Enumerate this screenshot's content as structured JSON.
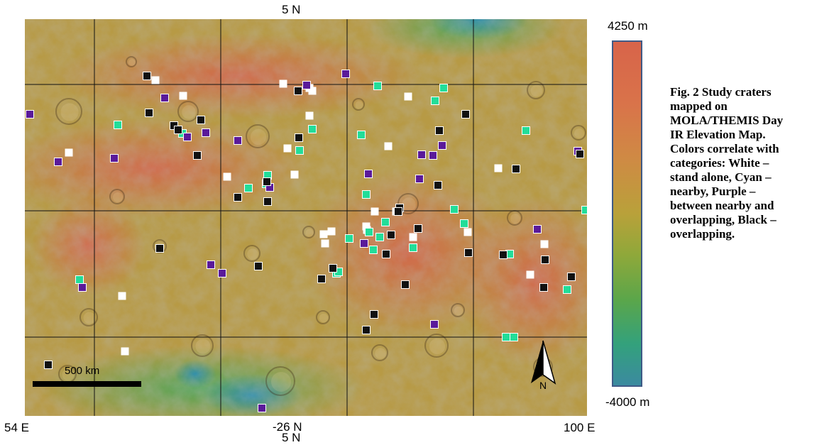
{
  "labels": {
    "top_lat": "5 N",
    "bottom_lon_left": "54 E",
    "bottom_lon_center": "-26 N",
    "bottom_lat_center": "5 N",
    "bottom_lon_right": "100 E"
  },
  "colorbar": {
    "max_label": "4250 m",
    "min_label": "-4000 m",
    "top_color": "#d8644a",
    "bottom_color": "#3b8aa0"
  },
  "caption": "Fig. 2 Study craters\nmapped on\nMOLA/THEMIS Day\nIR Elevation Map.\nColors correlate with\ncategories: White –\nstand alone, Cyan –\nnearby, Purple –\nbetween nearby and\noverlapping, Black –\noverlapping.",
  "scale_bar": {
    "label": "500 km"
  },
  "north_arrow": {
    "label": "N"
  },
  "category_colors": {
    "white": "#ffffff",
    "cyan": "#22dd99",
    "purple": "#5a1a9a",
    "black": "#111111"
  },
  "markers": {
    "white": [
      [
        219,
        113
      ],
      [
        258,
        135
      ],
      [
        399,
        118
      ],
      [
        436,
        124
      ],
      [
        440,
        128
      ],
      [
        575,
        136
      ],
      [
        436,
        163
      ],
      [
        405,
        209
      ],
      [
        97,
        215
      ],
      [
        547,
        206
      ],
      [
        320,
        249
      ],
      [
        415,
        246
      ],
      [
        702,
        237
      ],
      [
        528,
        298
      ],
      [
        558,
        298
      ],
      [
        516,
        319
      ],
      [
        467,
        326
      ],
      [
        456,
        330
      ],
      [
        458,
        343
      ],
      [
        517,
        324
      ],
      [
        582,
        334
      ],
      [
        659,
        327
      ],
      [
        767,
        344
      ],
      [
        747,
        387
      ],
      [
        172,
        417
      ],
      [
        176,
        495
      ]
    ],
    "cyan": [
      [
        532,
        121
      ],
      [
        625,
        124
      ],
      [
        613,
        142
      ],
      [
        440,
        182
      ],
      [
        166,
        176
      ],
      [
        257,
        188
      ],
      [
        509,
        190
      ],
      [
        741,
        184
      ],
      [
        422,
        212
      ],
      [
        377,
        247
      ],
      [
        375,
        259
      ],
      [
        350,
        265
      ],
      [
        516,
        274
      ],
      [
        640,
        295
      ],
      [
        543,
        313
      ],
      [
        654,
        315
      ],
      [
        520,
        327
      ],
      [
        535,
        334
      ],
      [
        492,
        336
      ],
      [
        526,
        352
      ],
      [
        582,
        349
      ],
      [
        718,
        358
      ],
      [
        112,
        394
      ],
      [
        474,
        385
      ],
      [
        477,
        383
      ],
      [
        799,
        408
      ],
      [
        713,
        475
      ],
      [
        724,
        475
      ],
      [
        825,
        296
      ]
    ],
    "purple": [
      [
        487,
        104
      ],
      [
        432,
        120
      ],
      [
        232,
        138
      ],
      [
        42,
        161
      ],
      [
        290,
        187
      ],
      [
        264,
        193
      ],
      [
        335,
        198
      ],
      [
        161,
        223
      ],
      [
        82,
        228
      ],
      [
        594,
        218
      ],
      [
        623,
        205
      ],
      [
        610,
        219
      ],
      [
        814,
        213
      ],
      [
        519,
        245
      ],
      [
        591,
        252
      ],
      [
        380,
        264
      ],
      [
        513,
        343
      ],
      [
        297,
        373
      ],
      [
        313,
        385
      ],
      [
        116,
        405
      ],
      [
        757,
        323
      ],
      [
        612,
        457
      ],
      [
        369,
        575
      ]
    ],
    "black": [
      [
        207,
        107
      ],
      [
        420,
        128
      ],
      [
        210,
        159
      ],
      [
        283,
        169
      ],
      [
        245,
        177
      ],
      [
        251,
        183
      ],
      [
        656,
        161
      ],
      [
        619,
        184
      ],
      [
        421,
        194
      ],
      [
        278,
        219
      ],
      [
        727,
        238
      ],
      [
        617,
        261
      ],
      [
        335,
        278
      ],
      [
        377,
        284
      ],
      [
        563,
        293
      ],
      [
        561,
        298
      ],
      [
        589,
        322
      ],
      [
        551,
        331
      ],
      [
        544,
        358
      ],
      [
        225,
        350
      ],
      [
        364,
        375
      ],
      [
        469,
        378
      ],
      [
        709,
        359
      ],
      [
        768,
        366
      ],
      [
        453,
        393
      ],
      [
        660,
        356
      ],
      [
        805,
        390
      ],
      [
        571,
        401
      ],
      [
        766,
        405
      ],
      [
        527,
        443
      ],
      [
        516,
        465
      ],
      [
        68,
        514
      ],
      [
        817,
        217
      ],
      [
        376,
        256
      ]
    ]
  }
}
